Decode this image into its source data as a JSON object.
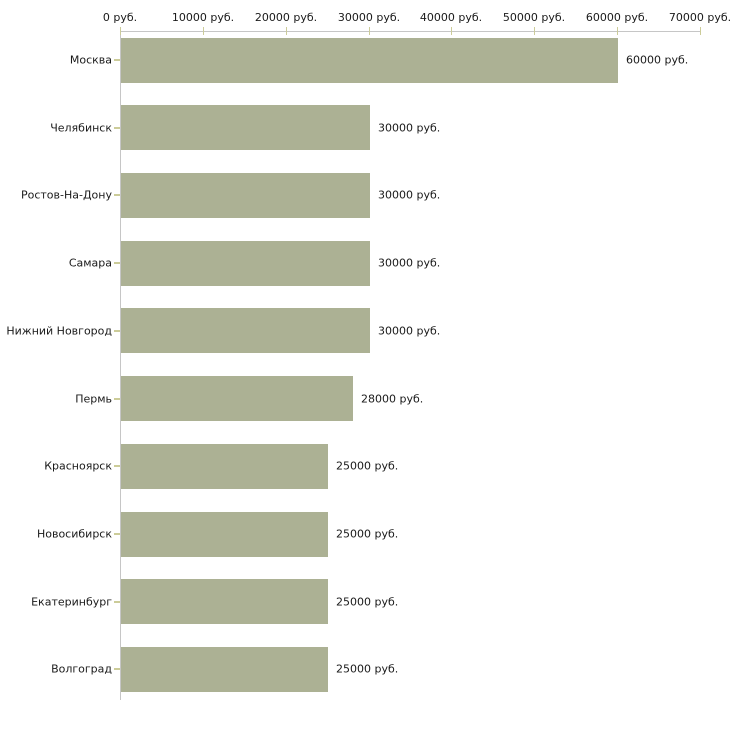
{
  "chart_data": {
    "type": "bar",
    "orientation": "horizontal",
    "title": "",
    "xlabel": "",
    "ylabel": "",
    "unit": "руб.",
    "xlim": [
      0,
      70000
    ],
    "grid": false,
    "legend": null,
    "categories": [
      "Москва",
      "Челябинск",
      "Ростов-На-Дону",
      "Самара",
      "Нижний Новгород",
      "Пермь",
      "Красноярск",
      "Новосибирск",
      "Екатеринбург",
      "Волгоград"
    ],
    "values": [
      60000,
      30000,
      30000,
      30000,
      30000,
      28000,
      25000,
      25000,
      25000,
      25000
    ],
    "value_labels": [
      "60000 руб.",
      "30000 руб.",
      "30000 руб.",
      "30000 руб.",
      "30000 руб.",
      "28000 руб.",
      "25000 руб.",
      "25000 руб.",
      "25000 руб.",
      "25000 руб."
    ],
    "x_ticks": [
      {
        "value": 0,
        "label": "0 руб."
      },
      {
        "value": 10000,
        "label": "10000 руб."
      },
      {
        "value": 20000,
        "label": "20000 руб."
      },
      {
        "value": 30000,
        "label": "30000 руб."
      },
      {
        "value": 40000,
        "label": "40000 руб."
      },
      {
        "value": 50000,
        "label": "50000 руб."
      },
      {
        "value": 60000,
        "label": "60000 руб."
      },
      {
        "value": 70000,
        "label": "70000 руб."
      }
    ],
    "colors": {
      "bar": "#acb194",
      "axis_line": "#c6c6c6",
      "tick_mark": "#cccc99",
      "text": "#1a1a1a",
      "background": "#ffffff"
    }
  }
}
